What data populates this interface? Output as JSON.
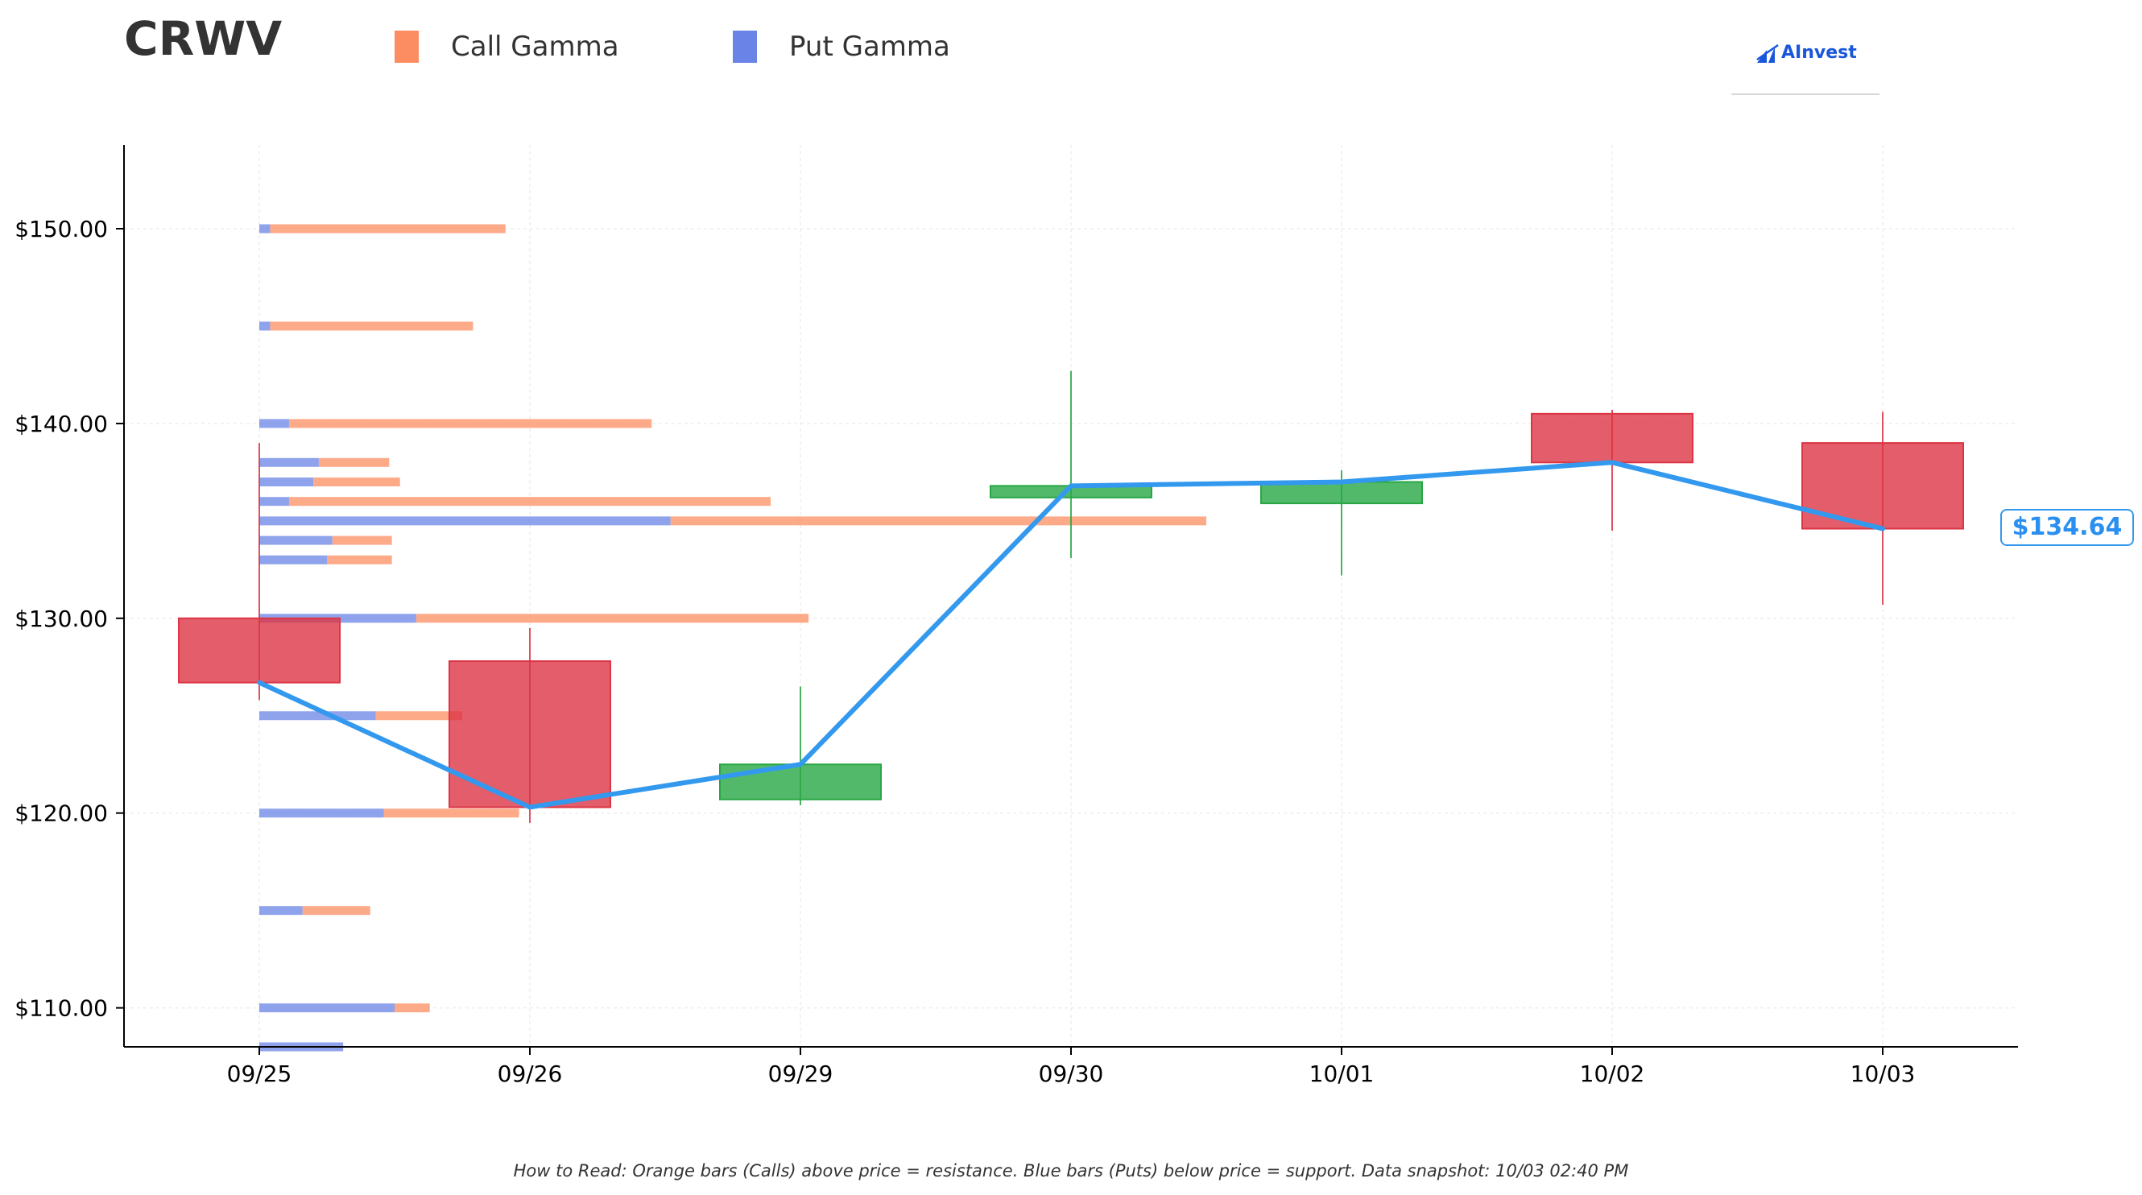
{
  "header": {
    "ticker": "CRWV",
    "logo_text": "AInvest"
  },
  "legend": {
    "call_label": "Call Gamma",
    "put_label": "Put Gamma"
  },
  "colors": {
    "call": "#fc8d62",
    "put": "#6984e6",
    "price_line": "#3399ee",
    "candle_down": "#dc3545",
    "candle_up": "#28a745",
    "logo": "#1a56db"
  },
  "current_price_label": "$134.64",
  "footnote": "How to Read: Orange bars (Calls) above price = resistance. Blue bars (Puts) below price = support. Data snapshot: 10/03 02:40 PM",
  "chart_data": {
    "type": "candlestick",
    "title": "CRWV",
    "ylim": [
      108.0,
      154.3
    ],
    "y_ticks": [
      110,
      120,
      130,
      140,
      150
    ],
    "y_tick_labels": [
      "$110.00",
      "$120.00",
      "$130.00",
      "$140.00",
      "$150.00"
    ],
    "categories": [
      "09/25",
      "09/26",
      "09/29",
      "09/30",
      "10/01",
      "10/02",
      "10/03"
    ],
    "grid": true,
    "candles": [
      {
        "date": "09/25",
        "open": 130.0,
        "high": 139.0,
        "low": 125.8,
        "close": 126.7
      },
      {
        "date": "09/26",
        "open": 127.8,
        "high": 129.5,
        "low": 119.5,
        "close": 120.3
      },
      {
        "date": "09/29",
        "open": 120.7,
        "high": 126.5,
        "low": 120.4,
        "close": 122.5
      },
      {
        "date": "09/30",
        "open": 136.2,
        "high": 142.7,
        "low": 133.1,
        "close": 136.8
      },
      {
        "date": "10/01",
        "open": 135.9,
        "high": 137.6,
        "low": 132.2,
        "close": 137.0
      },
      {
        "date": "10/02",
        "open": 140.5,
        "high": 140.7,
        "low": 134.5,
        "close": 138.0
      },
      {
        "date": "10/03",
        "open": 139.0,
        "high": 140.6,
        "low": 130.7,
        "close": 134.6
      }
    ],
    "close_line": [
      126.7,
      120.3,
      122.5,
      136.8,
      137.0,
      138.0,
      134.6
    ],
    "current_price": 134.64,
    "gamma_profile": {
      "scale_note": "bar lengths in x-axis day units starting at 09/25",
      "levels": [
        {
          "strike": 108,
          "put": 0.31,
          "call": 0.0
        },
        {
          "strike": 110,
          "put": 0.5,
          "call": 0.13
        },
        {
          "strike": 115,
          "put": 0.16,
          "call": 0.25
        },
        {
          "strike": 120,
          "put": 0.46,
          "call": 0.5
        },
        {
          "strike": 125,
          "put": 0.43,
          "call": 0.32
        },
        {
          "strike": 130,
          "put": 0.58,
          "call": 1.45
        },
        {
          "strike": 133,
          "put": 0.25,
          "call": 0.24
        },
        {
          "strike": 134,
          "put": 0.27,
          "call": 0.22
        },
        {
          "strike": 135,
          "put": 1.52,
          "call": 1.98
        },
        {
          "strike": 136,
          "put": 0.11,
          "call": 1.78
        },
        {
          "strike": 137,
          "put": 0.2,
          "call": 0.32
        },
        {
          "strike": 138,
          "put": 0.22,
          "call": 0.26
        },
        {
          "strike": 140,
          "put": 0.11,
          "call": 1.34
        },
        {
          "strike": 145,
          "put": 0.04,
          "call": 0.75
        },
        {
          "strike": 150,
          "put": 0.04,
          "call": 0.87
        }
      ]
    }
  }
}
